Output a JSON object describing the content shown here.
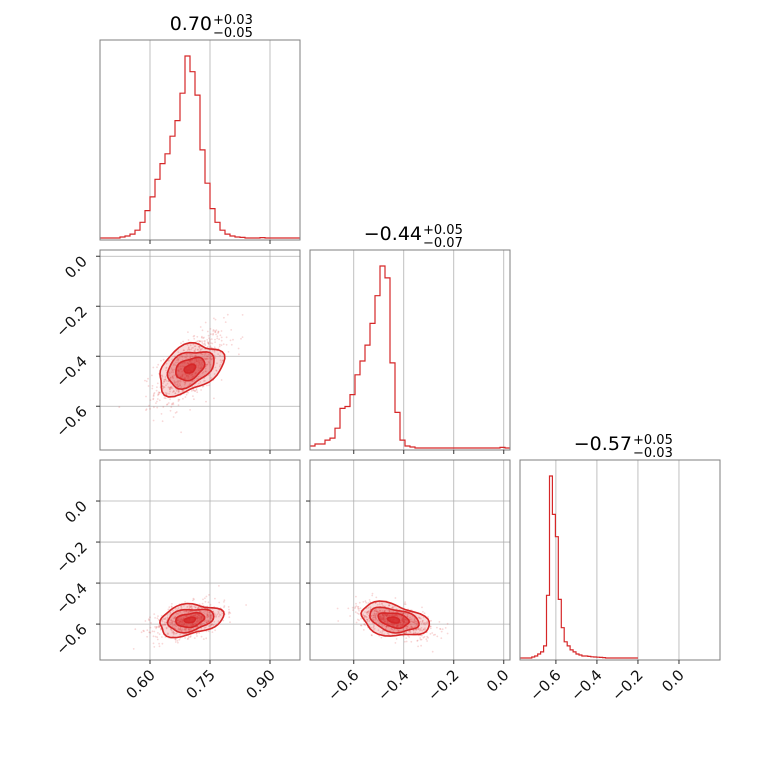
{
  "chart_data": {
    "type": "corner",
    "color": "#d62728",
    "grid": true,
    "parameters": [
      {
        "title": {
          "median": "0.70",
          "plus": "+0.03",
          "minus": "−0.05"
        },
        "range": [
          0.475,
          0.975
        ],
        "ticks": [
          0.6,
          0.75,
          0.9
        ],
        "tick_labels": [
          "0.60",
          "0.75",
          "0.90"
        ]
      },
      {
        "title": {
          "median": "−0.44",
          "plus": "+0.05",
          "minus": "−0.07"
        },
        "range": [
          -0.775,
          0.025
        ],
        "ticks": [
          -0.6,
          -0.4,
          -0.2,
          0.0
        ],
        "tick_labels": [
          "−0.6",
          "−0.4",
          "−0.2",
          "0.0"
        ]
      },
      {
        "title": {
          "median": "−0.57",
          "plus": "+0.05",
          "minus": "−0.03"
        },
        "range": [
          -0.775,
          0.2
        ],
        "ticks": [
          -0.6,
          -0.4,
          -0.2,
          0.0
        ],
        "tick_labels": [
          "−0.6",
          "−0.4",
          "−0.2",
          "0.0"
        ]
      }
    ],
    "histograms": [
      {
        "param": 0,
        "bin_edges": [
          0.475,
          0.4875,
          0.5,
          0.5125,
          0.525,
          0.5375,
          0.55,
          0.5625,
          0.575,
          0.5875,
          0.6,
          0.6125,
          0.625,
          0.6375,
          0.65,
          0.6625,
          0.675,
          0.6875,
          0.7,
          0.7125,
          0.725,
          0.7375,
          0.75,
          0.7625,
          0.775,
          0.7875,
          0.8,
          0.8125,
          0.825,
          0.8375,
          0.85,
          0.8625,
          0.875,
          0.8875,
          0.9,
          0.9125,
          0.925,
          0.9375,
          0.95,
          0.9625,
          0.975
        ],
        "counts": [
          0,
          0,
          0,
          0,
          0.005,
          0.01,
          0.02,
          0.04,
          0.08,
          0.14,
          0.21,
          0.3,
          0.38,
          0.43,
          0.52,
          0.6,
          0.74,
          0.93,
          0.85,
          0.73,
          0.45,
          0.28,
          0.15,
          0.08,
          0.04,
          0.02,
          0.01,
          0.005,
          0.003,
          0,
          0,
          0,
          0.002,
          0,
          0,
          0,
          0,
          0,
          0,
          0
        ]
      },
      {
        "param": 1,
        "bin_edges": [
          -0.775,
          -0.755,
          -0.735,
          -0.715,
          -0.695,
          -0.675,
          -0.655,
          -0.635,
          -0.615,
          -0.595,
          -0.575,
          -0.555,
          -0.535,
          -0.515,
          -0.495,
          -0.475,
          -0.455,
          -0.435,
          -0.415,
          -0.395,
          -0.375,
          -0.355,
          -0.335,
          -0.315,
          -0.295,
          -0.275,
          -0.255,
          -0.235,
          -0.215,
          -0.195,
          -0.175,
          -0.155,
          -0.135,
          -0.115,
          -0.095,
          -0.075,
          -0.055,
          -0.035,
          -0.015,
          0.005,
          0.025
        ],
        "counts": [
          0.01,
          0.02,
          0.02,
          0.04,
          0.05,
          0.1,
          0.2,
          0.21,
          0.27,
          0.37,
          0.44,
          0.52,
          0.63,
          0.77,
          0.92,
          0.86,
          0.43,
          0.18,
          0.04,
          0.01,
          0.005,
          0,
          0,
          0,
          0,
          0,
          0,
          0,
          0,
          0,
          0,
          0,
          0,
          0,
          0,
          0,
          0,
          0,
          0.003,
          0
        ]
      },
      {
        "param": 2,
        "bin_edges": [
          -0.775,
          -0.760625,
          -0.74625,
          -0.731875,
          -0.7175,
          -0.703125,
          -0.68875,
          -0.674375,
          -0.66,
          -0.645625,
          -0.63125,
          -0.616875,
          -0.6025,
          -0.588125,
          -0.57375,
          -0.559375,
          -0.545,
          -0.530625,
          -0.51625,
          -0.501875,
          -0.4875,
          -0.473125,
          -0.45875,
          -0.444375,
          -0.43,
          -0.415625,
          -0.40125,
          -0.386875,
          -0.3725,
          -0.358125,
          -0.34375,
          -0.329375,
          -0.315,
          -0.300625,
          -0.28625,
          -0.271875,
          -0.2575,
          -0.243125,
          -0.22875,
          -0.214375,
          -0.2
        ],
        "counts": [
          0,
          0,
          0,
          0,
          0.005,
          0.01,
          0.02,
          0.03,
          0.06,
          0.31,
          0.9,
          0.71,
          0.6,
          0.29,
          0.15,
          0.08,
          0.06,
          0.04,
          0.03,
          0.02,
          0.015,
          0.01,
          0.01,
          0.008,
          0.006,
          0.005,
          0.004,
          0.003,
          0.002,
          0,
          0,
          0,
          0,
          0,
          0,
          0,
          0,
          0,
          0,
          0
        ]
      }
    ],
    "joint": [
      {
        "x_param": 0,
        "y_param": 1,
        "mean": [
          0.7,
          -0.45
        ],
        "sd": [
          0.035,
          0.06
        ],
        "rho": 0.6,
        "n_points": 700
      },
      {
        "x_param": 0,
        "y_param": 2,
        "mean": [
          0.7,
          -0.58
        ],
        "sd": [
          0.035,
          0.035
        ],
        "rho": 0.4,
        "n_points": 700
      },
      {
        "x_param": 1,
        "y_param": 2,
        "mean": [
          -0.44,
          -0.58
        ],
        "sd": [
          0.06,
          0.035
        ],
        "rho": -0.5,
        "n_points": 700
      }
    ]
  }
}
